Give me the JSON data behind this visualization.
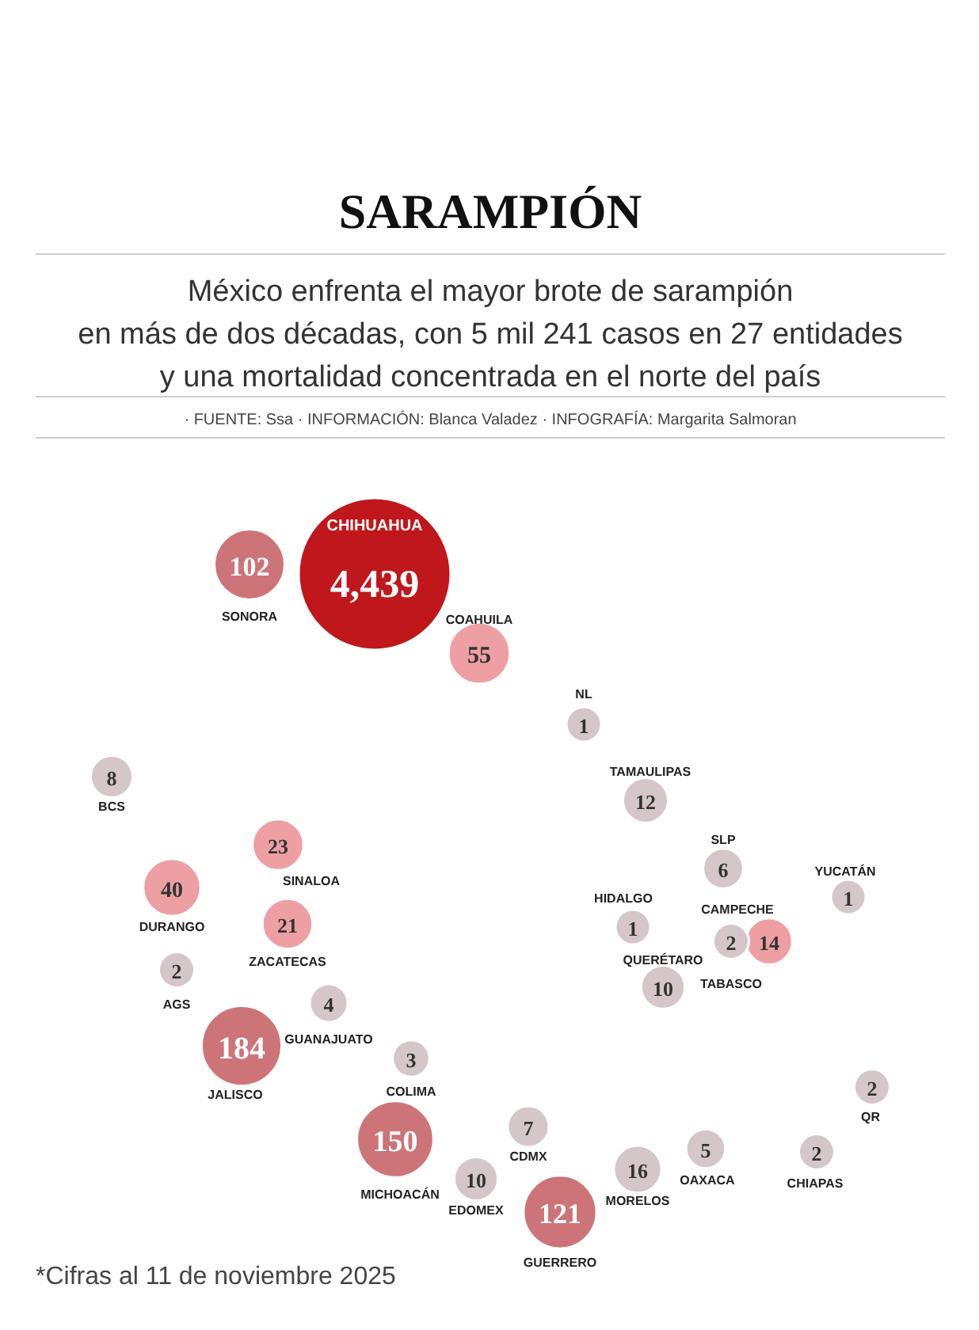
{
  "chart_data": {
    "type": "other",
    "title": "SARAMPIÓN",
    "subtitle": "México enfrenta el mayor brote de sarampión\nen más de dos décadas, con 5 mil 241 casos en 27 entidades\ny una mortalidad concentrada en el norte del país",
    "annotations": [
      "· FUENTE: Ssa · INFORMACIÓN: Blanca Valadez · INFOGRAFÍA: Margarita Salmoran",
      "*Cifras al 11 de noviembre 2025"
    ],
    "categories": [
      "CHIHUAHUA",
      "SONORA",
      "COAHUILA",
      "NL",
      "BCS",
      "TAMAULIPAS",
      "SINALOA",
      "SLP",
      "DURANGO",
      "HIDALGO",
      "YUCATÁN",
      "CAMPECHE",
      "ZACATECAS",
      "QUERÉTARO",
      "AGS",
      "TABASCO",
      "GUANAJUATO",
      "COLIMA",
      "JALISCO",
      "QR",
      "CHIAPAS",
      "OAXACA",
      "MORELOS",
      "CDMX",
      "EDOMEX",
      "GUERRERO",
      "MICHOACÁN"
    ],
    "values": [
      4439,
      102,
      55,
      1,
      8,
      12,
      23,
      6,
      40,
      1,
      1,
      14,
      21,
      10,
      2,
      2,
      4,
      3,
      184,
      2,
      2,
      5,
      16,
      7,
      10,
      121,
      150
    ],
    "value_labels": [
      "4,439",
      "102",
      "55",
      "1",
      "8",
      "12",
      "23",
      "6",
      "40",
      "1",
      "1",
      "14",
      "21",
      "10",
      "2",
      "2",
      "4",
      "3",
      "184",
      "2",
      "2",
      "5",
      "16",
      "7",
      "10",
      "121",
      "150"
    ],
    "colors": [
      "#c0171c",
      "#cd7479",
      "#ee9fa3",
      "#d5c6c9",
      "#d5c6c9",
      "#d5c6c9",
      "#ee9fa3",
      "#d5c6c9",
      "#ee9fa3",
      "#d5c6c9",
      "#d5c6c9",
      "#ee9fa3",
      "#ee9fa3",
      "#d5c6c9",
      "#d5c6c9",
      "#d5c6c9",
      "#d5c6c9",
      "#d5c6c9",
      "#cd7479",
      "#d5c6c9",
      "#d5c6c9",
      "#d5c6c9",
      "#d5c6c9",
      "#d5c6c9",
      "#d5c6c9",
      "#cd7479",
      "#cd7479"
    ]
  }
}
